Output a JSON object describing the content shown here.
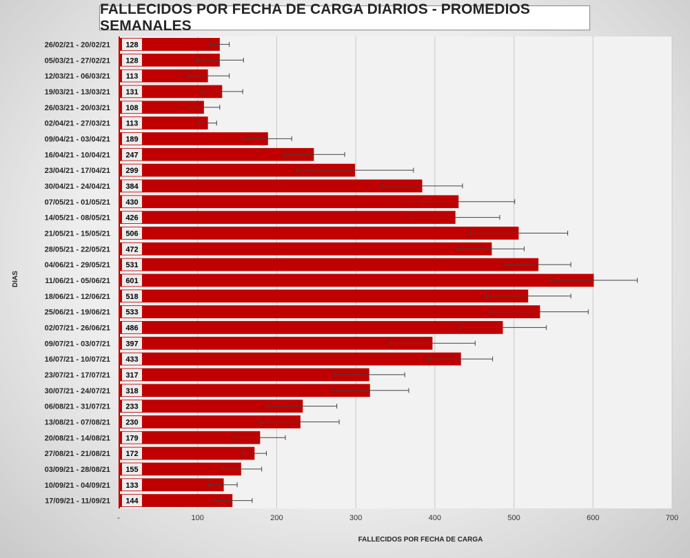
{
  "chart_data": {
    "type": "bar",
    "orientation": "horizontal",
    "title": "FALLECIDOS POR FECHA DE CARGA DIARIOS - PROMEDIOS SEMANALES",
    "xlabel": "FALLECIDOS POR FECHA DE CARGA",
    "ylabel": "DIAS",
    "xlim": [
      0,
      700
    ],
    "xticks": [
      "-",
      "100",
      "200",
      "300",
      "400",
      "500",
      "600",
      "700"
    ],
    "grid": true,
    "bar_color": "#c00000",
    "categories": [
      "26/02/21 - 20/02/21",
      "05/03/21 - 27/02/21",
      "12/03/21 - 06/03/21",
      "19/03/21 - 13/03/21",
      "26/03/21 - 20/03/21",
      "02/04/21 - 27/03/21",
      "09/04/21 - 03/04/21",
      "16/04/21 - 10/04/21",
      "23/04/21 - 17/04/21",
      "30/04/21 - 24/04/21",
      "07/05/21 - 01/05/21",
      "14/05/21 - 08/05/21",
      "21/05/21 - 15/05/21",
      "28/05/21 - 22/05/21",
      "04/06/21 - 29/05/21",
      "11/06/21 - 05/06/21",
      "18/06/21 - 12/06/21",
      "25/06/21 - 19/06/21",
      "02/07/21 - 26/06/21",
      "09/07/21 - 03/07/21",
      "16/07/21 - 10/07/21",
      "23/07/21 - 17/07/21",
      "30/07/21 - 24/07/21",
      "06/08/21 - 31/07/21",
      "13/08/21 - 07/08/21",
      "20/08/21 - 14/08/21",
      "27/08/21 - 21/08/21",
      "03/09/21 - 28/08/21",
      "10/09/21 - 04/09/21",
      "17/09/21 - 11/09/21"
    ],
    "values": [
      128,
      128,
      113,
      131,
      108,
      113,
      189,
      247,
      299,
      384,
      430,
      426,
      506,
      472,
      531,
      601,
      518,
      533,
      486,
      397,
      433,
      317,
      318,
      233,
      230,
      179,
      172,
      155,
      133,
      144
    ],
    "error_low": [
      116,
      98,
      88,
      106,
      90,
      102,
      158,
      210,
      225,
      334,
      358,
      370,
      445,
      430,
      489,
      545,
      465,
      470,
      432,
      342,
      392,
      273,
      270,
      188,
      180,
      146,
      157,
      130,
      114,
      120
    ],
    "error_high": [
      140,
      158,
      140,
      157,
      128,
      124,
      219,
      286,
      373,
      435,
      501,
      482,
      568,
      513,
      572,
      656,
      572,
      594,
      541,
      451,
      473,
      362,
      367,
      276,
      279,
      211,
      187,
      181,
      150,
      169
    ]
  }
}
